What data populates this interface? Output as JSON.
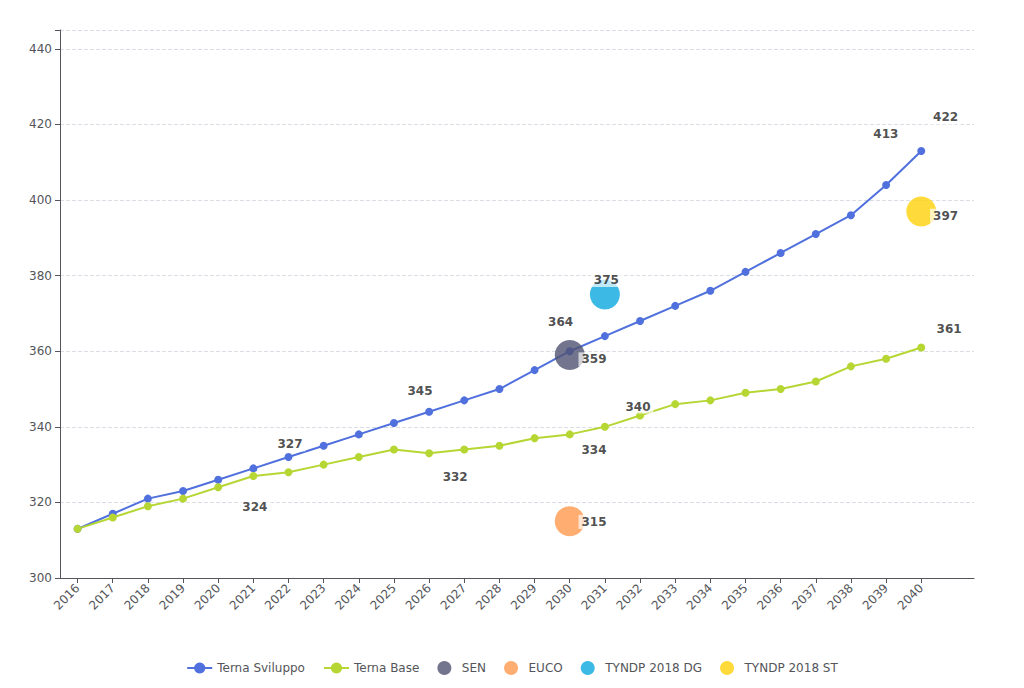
{
  "chart_data": {
    "type": "line",
    "x": [
      2016,
      2017,
      2018,
      2019,
      2020,
      2021,
      2022,
      2023,
      2024,
      2025,
      2026,
      2027,
      2028,
      2029,
      2030,
      2031,
      2032,
      2033,
      2034,
      2035,
      2036,
      2037,
      2038,
      2039,
      2040
    ],
    "series": [
      {
        "name": "Terna Sviluppo",
        "type": "line",
        "marker": "circle",
        "values": [
          313,
          317,
          321,
          323,
          326,
          329,
          332,
          335,
          338,
          341,
          344,
          347,
          350,
          355,
          360,
          364,
          368,
          372,
          376,
          381,
          386,
          391,
          396,
          404,
          413
        ]
      },
      {
        "name": "Terna Base",
        "type": "line",
        "marker": "circle",
        "values": [
          313,
          316,
          319,
          321,
          324,
          327,
          328,
          330,
          332,
          334,
          333,
          334,
          335,
          337,
          338,
          340,
          343,
          346,
          347,
          349,
          350,
          352,
          356,
          358,
          361
        ]
      },
      {
        "name": "SEN",
        "type": "scatter",
        "marker": "circle",
        "x": [
          2030
        ],
        "values": [
          359
        ]
      },
      {
        "name": "EUCO",
        "type": "scatter",
        "marker": "circle",
        "x": [
          2030
        ],
        "values": [
          315
        ]
      },
      {
        "name": "TYNDP 2018 DG",
        "type": "scatter",
        "marker": "circle",
        "x": [
          2031
        ],
        "values": [
          375
        ]
      },
      {
        "name": "TYNDP 2018 ST",
        "type": "scatter",
        "marker": "circle",
        "x": [
          2040
        ],
        "values": [
          397
        ]
      }
    ],
    "annotations": [
      {
        "text": "327",
        "x": 2021.6,
        "y": 333.5
      },
      {
        "text": "324",
        "x": 2020.6,
        "y": 317
      },
      {
        "text": "345",
        "x": 2025.3,
        "y": 347.5
      },
      {
        "text": "332",
        "x": 2026.3,
        "y": 325
      },
      {
        "text": "364",
        "x": 2029.3,
        "y": 366
      },
      {
        "text": "359",
        "x": 2030.25,
        "y": 356
      },
      {
        "text": "375",
        "x": 2030.6,
        "y": 377
      },
      {
        "text": "340",
        "x": 2031.5,
        "y": 343.5
      },
      {
        "text": "334",
        "x": 2030.25,
        "y": 332
      },
      {
        "text": "315",
        "x": 2030.25,
        "y": 313
      },
      {
        "text": "413",
        "x": 2038.55,
        "y": 415.5
      },
      {
        "text": "422",
        "x": 2040.25,
        "y": 420
      },
      {
        "text": "397",
        "x": 2040.25,
        "y": 394
      },
      {
        "text": "361",
        "x": 2040.35,
        "y": 364
      }
    ],
    "xlim": [
      2015.5,
      2041.5
    ],
    "xticks": [
      2016,
      2017,
      2018,
      2019,
      2020,
      2021,
      2022,
      2023,
      2024,
      2025,
      2026,
      2027,
      2028,
      2029,
      2030,
      2031,
      2032,
      2033,
      2034,
      2035,
      2036,
      2037,
      2038,
      2039,
      2040
    ],
    "ylim": [
      300,
      445
    ],
    "yticks": [
      300,
      320,
      340,
      360,
      380,
      400,
      420,
      440
    ],
    "grid": true,
    "legend": "bottom"
  }
}
